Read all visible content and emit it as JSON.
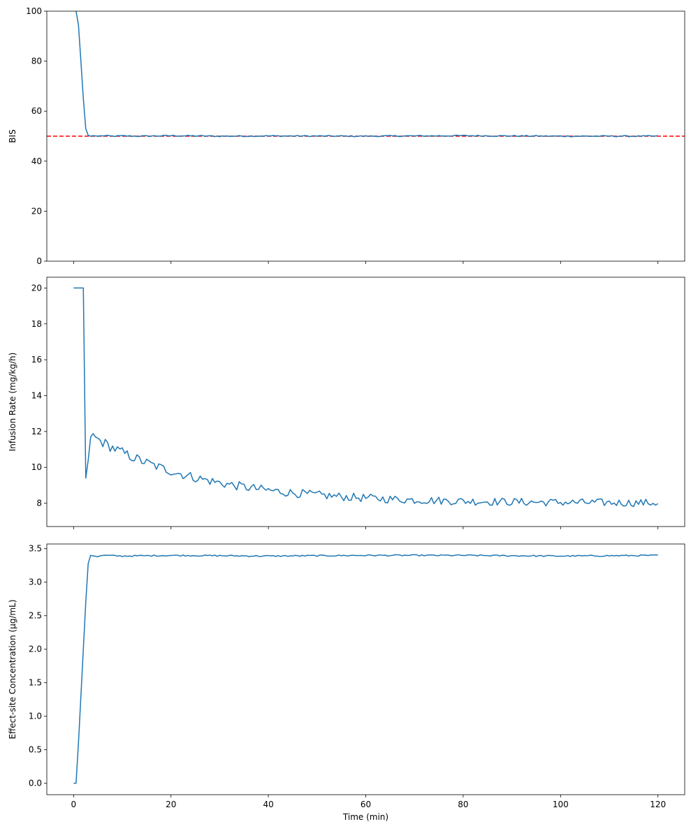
{
  "x_values": {
    "start": 0,
    "step": 0.5,
    "count": 241
  },
  "chart_data": [
    {
      "type": "line",
      "xlabel": "",
      "ylabel": "BIS",
      "xlim": [
        -5.5,
        125.5
      ],
      "ylim": [
        0,
        100
      ],
      "xticks": [
        0,
        20,
        40,
        60,
        80,
        100,
        120
      ],
      "yticks": [
        0,
        20,
        40,
        60,
        80,
        100
      ],
      "ytick_labels": [
        "0",
        "20",
        "40",
        "60",
        "80",
        "100"
      ],
      "show_xtick_labels": false,
      "grid": false,
      "reference_line": {
        "y": 50,
        "color": "#ff0000",
        "style": "dashed"
      },
      "series": [
        {
          "color": "#1f77b4",
          "x": [
            0,
            0.5,
            1,
            1.5,
            2,
            2.5,
            3,
            3.5,
            4,
            5,
            6,
            8,
            10,
            14,
            20,
            30,
            40,
            60,
            80,
            100,
            120
          ],
          "values": [
            100.6,
            100,
            94.5,
            80,
            65,
            53,
            50.3,
            50,
            50.2,
            50,
            50.2,
            50,
            50.1,
            50,
            50.2,
            50,
            50.1,
            50,
            50.2,
            50,
            50
          ]
        }
      ]
    },
    {
      "type": "line",
      "xlabel": "",
      "ylabel": "Infusion Rate (mg/kg/h)",
      "xlim": [
        -5.5,
        125.5
      ],
      "ylim": [
        6.7,
        20.6
      ],
      "xticks": [
        0,
        20,
        40,
        60,
        80,
        100,
        120
      ],
      "yticks": [
        8,
        10,
        12,
        14,
        16,
        18,
        20
      ],
      "ytick_labels": [
        "8",
        "10",
        "12",
        "14",
        "16",
        "18",
        "20"
      ],
      "show_xtick_labels": false,
      "grid": false,
      "series": [
        {
          "color": "#1f77b4",
          "x": [
            0,
            0.5,
            1,
            1.5,
            2
          ],
          "values": [
            20,
            20,
            20,
            20,
            20
          ],
          "generated_tail": {
            "start": 2.5,
            "step": 0.5,
            "first": 9.4,
            "second": 10.4,
            "peak": 11.8,
            "decay_to": 8.0,
            "noise": 0.3
          }
        }
      ]
    },
    {
      "type": "line",
      "xlabel": "Time (min)",
      "ylabel": "Effect-site Concentration (μg/mL)",
      "xlim": [
        -5.5,
        125.5
      ],
      "ylim": [
        -0.17,
        3.57
      ],
      "xticks": [
        0,
        20,
        40,
        60,
        80,
        100,
        120
      ],
      "xtick_labels": [
        "0",
        "20",
        "40",
        "60",
        "80",
        "100",
        "120"
      ],
      "yticks": [
        0,
        0.5,
        1,
        1.5,
        2,
        2.5,
        3,
        3.5
      ],
      "ytick_labels": [
        "0.0",
        "0.5",
        "1.0",
        "1.5",
        "2.0",
        "2.5",
        "3.0",
        "3.5"
      ],
      "show_xtick_labels": true,
      "grid": false,
      "series": [
        {
          "color": "#1f77b4",
          "x": [
            0,
            0.5,
            1,
            1.5,
            2,
            2.5,
            3,
            3.5,
            5,
            6,
            10,
            20,
            40,
            60,
            80,
            100,
            120
          ],
          "values": [
            0,
            0,
            0.6,
            1.3,
            2.0,
            2.7,
            3.28,
            3.4,
            3.38,
            3.4,
            3.39,
            3.4,
            3.39,
            3.4,
            3.4,
            3.39,
            3.4
          ]
        }
      ]
    }
  ]
}
